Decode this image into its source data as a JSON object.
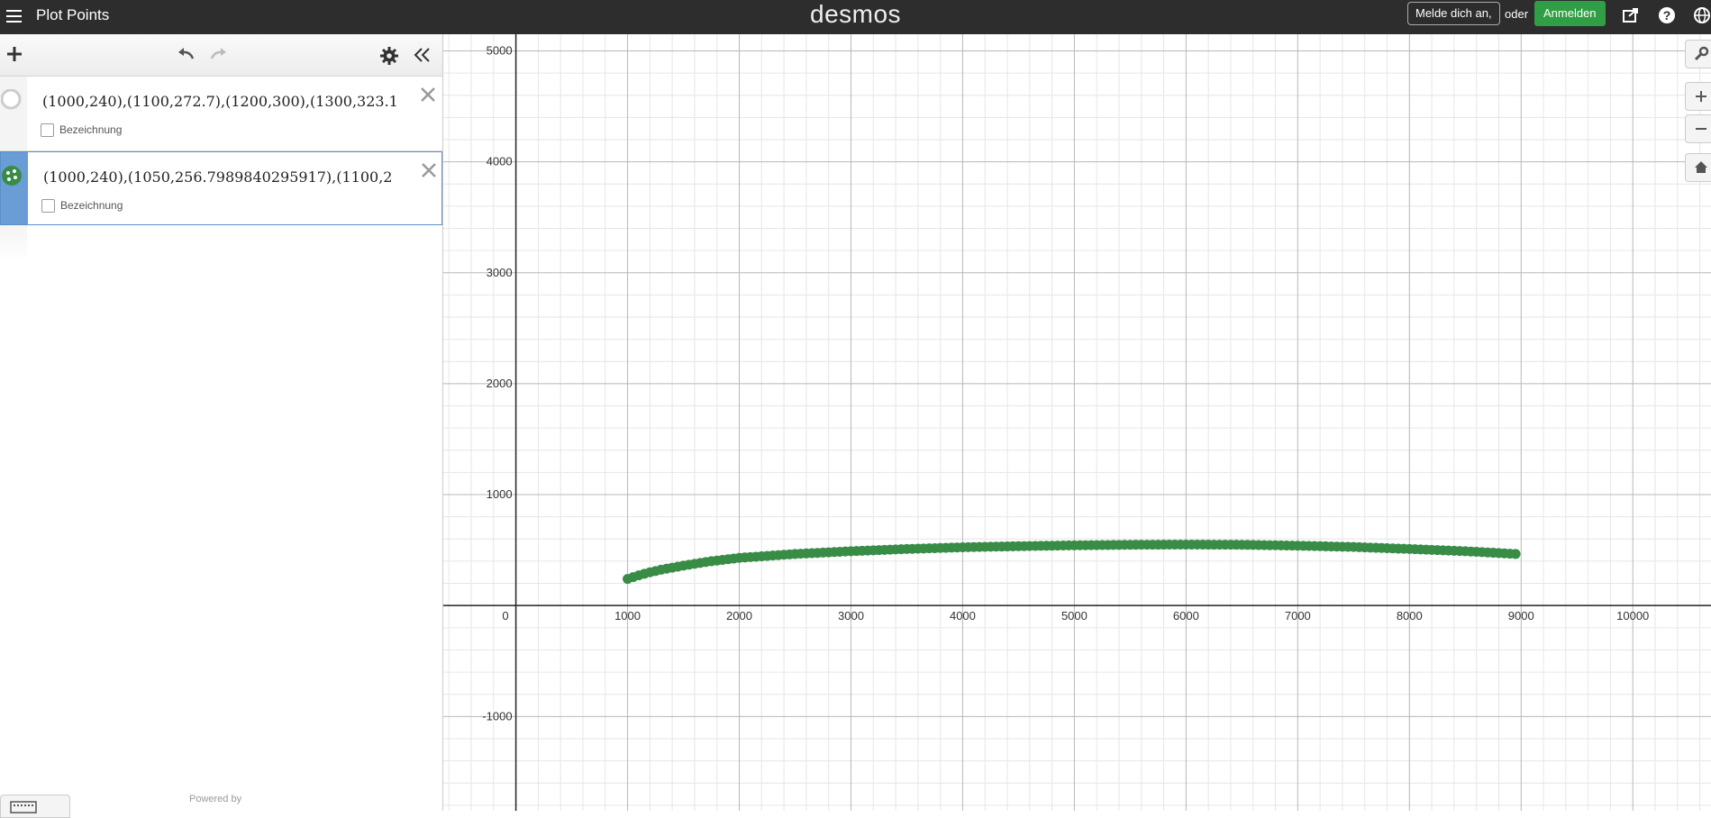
{
  "header": {
    "app_title": "Plot Points",
    "logo_text": "desmos",
    "login_label": "Melde dich an,",
    "or_text": "oder",
    "signup_label": "Anmelden"
  },
  "expressions": [
    {
      "latex": "(1000,240),(1100,272.7),(1200,300),(1300,323.1",
      "label_text": "Bezeichnung",
      "color": "#cccccc"
    },
    {
      "latex": "(1000,240),(1050,256.7989840295917),(1100,2",
      "label_text": "Bezeichnung",
      "color": "#388c46"
    }
  ],
  "footer": {
    "powered_by": "Powered by"
  },
  "chart_data": {
    "type": "scatter",
    "title": "",
    "xlabel": "",
    "ylabel": "",
    "xlim": [
      -650,
      10700
    ],
    "ylim": [
      -1850,
      5150
    ],
    "grid": true,
    "x_ticks": [
      0,
      1000,
      2000,
      3000,
      4000,
      5000,
      6000,
      7000,
      8000,
      9000,
      10000
    ],
    "y_ticks": [
      -1000,
      1000,
      2000,
      3000,
      4000,
      5000
    ],
    "series": [
      {
        "color": "#388c46",
        "x": [
          1000,
          1100,
          1200,
          1300,
          1500,
          1750,
          2000,
          2500,
          3000,
          3500,
          4000,
          4500,
          5000,
          5500,
          6000,
          6500,
          7000,
          7500,
          8000,
          8500,
          8950
        ],
        "y": [
          240,
          272.7,
          300,
          323,
          360,
          400,
          430,
          465,
          490,
          510,
          525,
          535,
          543,
          548,
          550,
          548,
          540,
          528,
          510,
          490,
          465
        ]
      }
    ]
  }
}
